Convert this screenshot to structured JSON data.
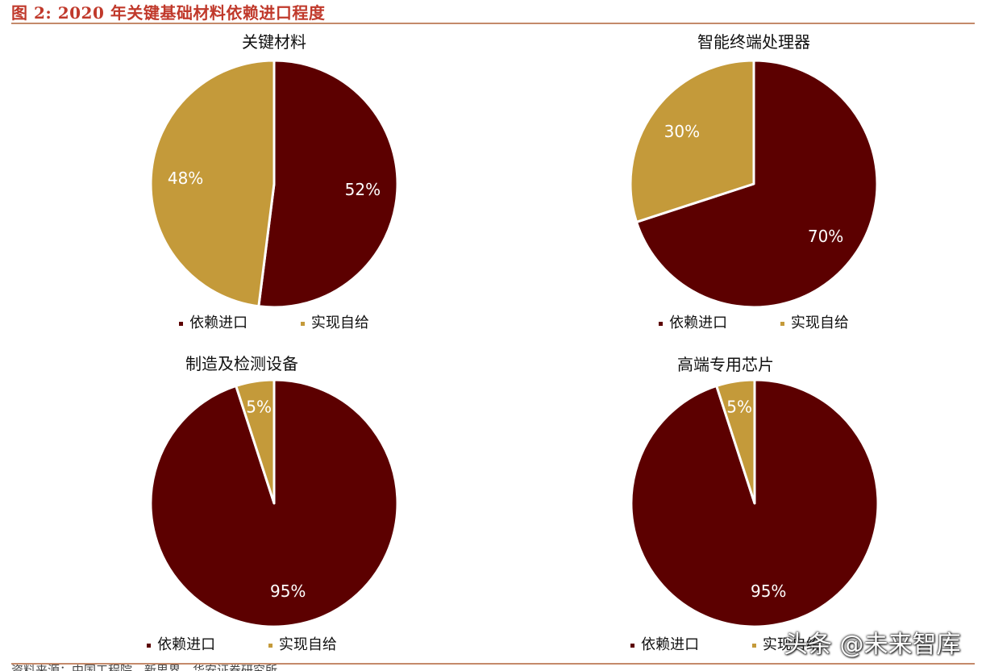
{
  "figure": {
    "title": "图 2:  2020 年关键基础材料依赖进口程度",
    "source": "资料来源：中国工程院、新思界、华安证券研究所"
  },
  "watermark": "头条 @未来智库",
  "colors": {
    "import": "#5c0000",
    "self": "#c49a3a"
  },
  "chart_data": [
    {
      "type": "pie",
      "title": "关键材料",
      "series": [
        {
          "name": "依赖进口",
          "value": 52,
          "label": "52%"
        },
        {
          "name": "实现自给",
          "value": 48,
          "label": "48%"
        }
      ],
      "legend": [
        "依赖进口",
        "实现自给"
      ],
      "legend_position": "bottom"
    },
    {
      "type": "pie",
      "title": "智能终端处理器",
      "series": [
        {
          "name": "依赖进口",
          "value": 70,
          "label": "70%"
        },
        {
          "name": "实现自给",
          "value": 30,
          "label": "30%"
        }
      ],
      "legend": [
        "依赖进口",
        "实现自给"
      ],
      "legend_position": "bottom"
    },
    {
      "type": "pie",
      "title": "制造及检测设备",
      "series": [
        {
          "name": "依赖进口",
          "value": 95,
          "label": "95%"
        },
        {
          "name": "实现自给",
          "value": 5,
          "label": "5%"
        }
      ],
      "legend": [
        "依赖进口",
        "实现自给"
      ],
      "legend_position": "bottom"
    },
    {
      "type": "pie",
      "title": "高端专用芯片",
      "series": [
        {
          "name": "依赖进口",
          "value": 95,
          "label": "95%"
        },
        {
          "name": "实现自给",
          "value": 5,
          "label": "5%"
        }
      ],
      "legend": [
        "依赖进口",
        "实现自给"
      ],
      "legend_position": "bottom"
    }
  ]
}
